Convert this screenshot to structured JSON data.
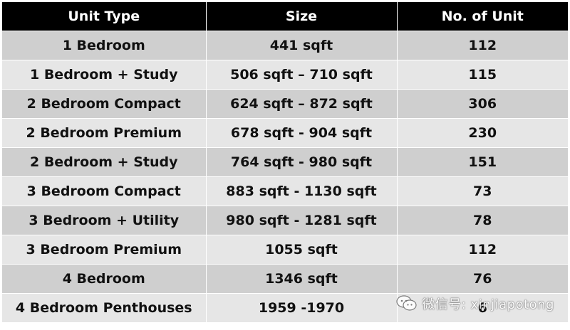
{
  "table": {
    "headers": [
      "Unit Type",
      "Size",
      "No. of Unit"
    ],
    "rows": [
      [
        "1 Bedroom",
        "441 sqft",
        "112"
      ],
      [
        "1 Bedroom + Study",
        "506 sqft – 710 sqft",
        "115"
      ],
      [
        "2 Bedroom Compact",
        "624 sqft – 872 sqft",
        "306"
      ],
      [
        "2 Bedroom Premium",
        "678 sqft - 904 sqft",
        "230"
      ],
      [
        "2 Bedroom + Study",
        "764 sqft - 980 sqft",
        "151"
      ],
      [
        "3 Bedroom Compact",
        "883 sqft - 1130 sqft",
        "73"
      ],
      [
        "3 Bedroom + Utility",
        "980 sqft - 1281 sqft",
        "78"
      ],
      [
        "3 Bedroom Premium",
        "1055 sqft",
        "112"
      ],
      [
        "4 Bedroom",
        "1346 sqft",
        "76"
      ],
      [
        "4 Bedroom Penthouses",
        "1959 -1970",
        "6"
      ]
    ]
  },
  "watermark": {
    "icon": "wechat-icon",
    "text": "微信号: xinjiapotong"
  }
}
